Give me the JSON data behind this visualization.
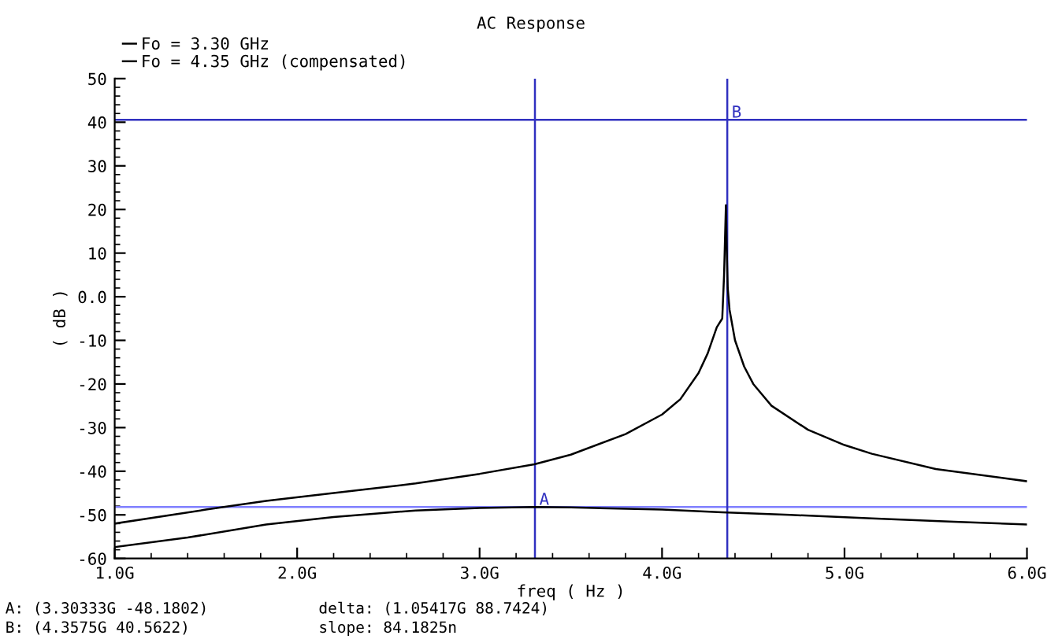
{
  "chart_data": {
    "type": "line",
    "title": "AC Response",
    "xlabel": "freq ( Hz )",
    "ylabel": "( dB )",
    "xlim": [
      1,
      6
    ],
    "xticks": [
      {
        "value": 1,
        "label": "1.0G"
      },
      {
        "value": 2,
        "label": "2.0G"
      },
      {
        "value": 3,
        "label": "3.0G"
      },
      {
        "value": 4,
        "label": "4.0G"
      },
      {
        "value": 5,
        "label": "5.0G"
      },
      {
        "value": 6,
        "label": "6.0G"
      }
    ],
    "ylim": [
      -60,
      50
    ],
    "yticks": [
      -60,
      -50,
      -40,
      -30,
      -20,
      -10,
      {
        "value": 0,
        "label": "0.0"
      },
      10,
      20,
      30,
      40,
      50
    ],
    "grid": false,
    "legend": "top left",
    "marker": "none",
    "line_style": "solid",
    "series": [
      {
        "name": "Fo = 3.30 GHz",
        "color": "#000000",
        "x": [
          1,
          1.4,
          1.83,
          2.2,
          2.65,
          3.0,
          3.3,
          3.5,
          4.0,
          4.33,
          4.7,
          5.15,
          5.6,
          6.0
        ],
        "values": [
          -57.4,
          -55.2,
          -52.2,
          -50.5,
          -49,
          -48.4,
          -48.2,
          -48.3,
          -48.8,
          -49.4,
          -50,
          -50.8,
          -51.6,
          -52.2
        ]
      },
      {
        "name": "Fo = 4.35 GHz (compensated)",
        "color": "#000000",
        "x": [
          1,
          1.5,
          1.83,
          2.2,
          2.65,
          3.0,
          3.3,
          3.5,
          3.8,
          4.0,
          4.1,
          4.2,
          4.25,
          4.3,
          4.33,
          4.34,
          4.35,
          4.355,
          4.36,
          4.37,
          4.4,
          4.45,
          4.5,
          4.6,
          4.8,
          5.0,
          5.15,
          5.5,
          6.0
        ],
        "values": [
          -52,
          -48.8,
          -46.8,
          -45,
          -42.8,
          -40.6,
          -38.4,
          -36.2,
          -31.5,
          -27,
          -23.5,
          -17.5,
          -13,
          -7,
          -5,
          5,
          21,
          10,
          2,
          -3,
          -10,
          -16,
          -20,
          -25,
          -30.5,
          -34,
          -36,
          -39.5,
          -42.3
        ]
      }
    ],
    "ref_lines": [
      {
        "axis": "y",
        "value": 40.5622,
        "color": "#3030c0"
      },
      {
        "axis": "y",
        "value": -48.1802,
        "color": "#8080ff"
      },
      {
        "axis": "x",
        "value": 3.30333,
        "color": "#3030c0"
      },
      {
        "axis": "x",
        "value": 4.3575,
        "color": "#3030c0"
      }
    ],
    "annotations": [
      {
        "text": "A",
        "x": 3.30333,
        "y": -48.1802
      },
      {
        "text": "B",
        "x": 4.3575,
        "y": 40.5622
      },
      "A: (3.30333G -48.1802)",
      "delta: (1.05417G 88.7424)",
      "B: (4.3575G 40.5622)",
      "slope: 84.1825n"
    ]
  }
}
